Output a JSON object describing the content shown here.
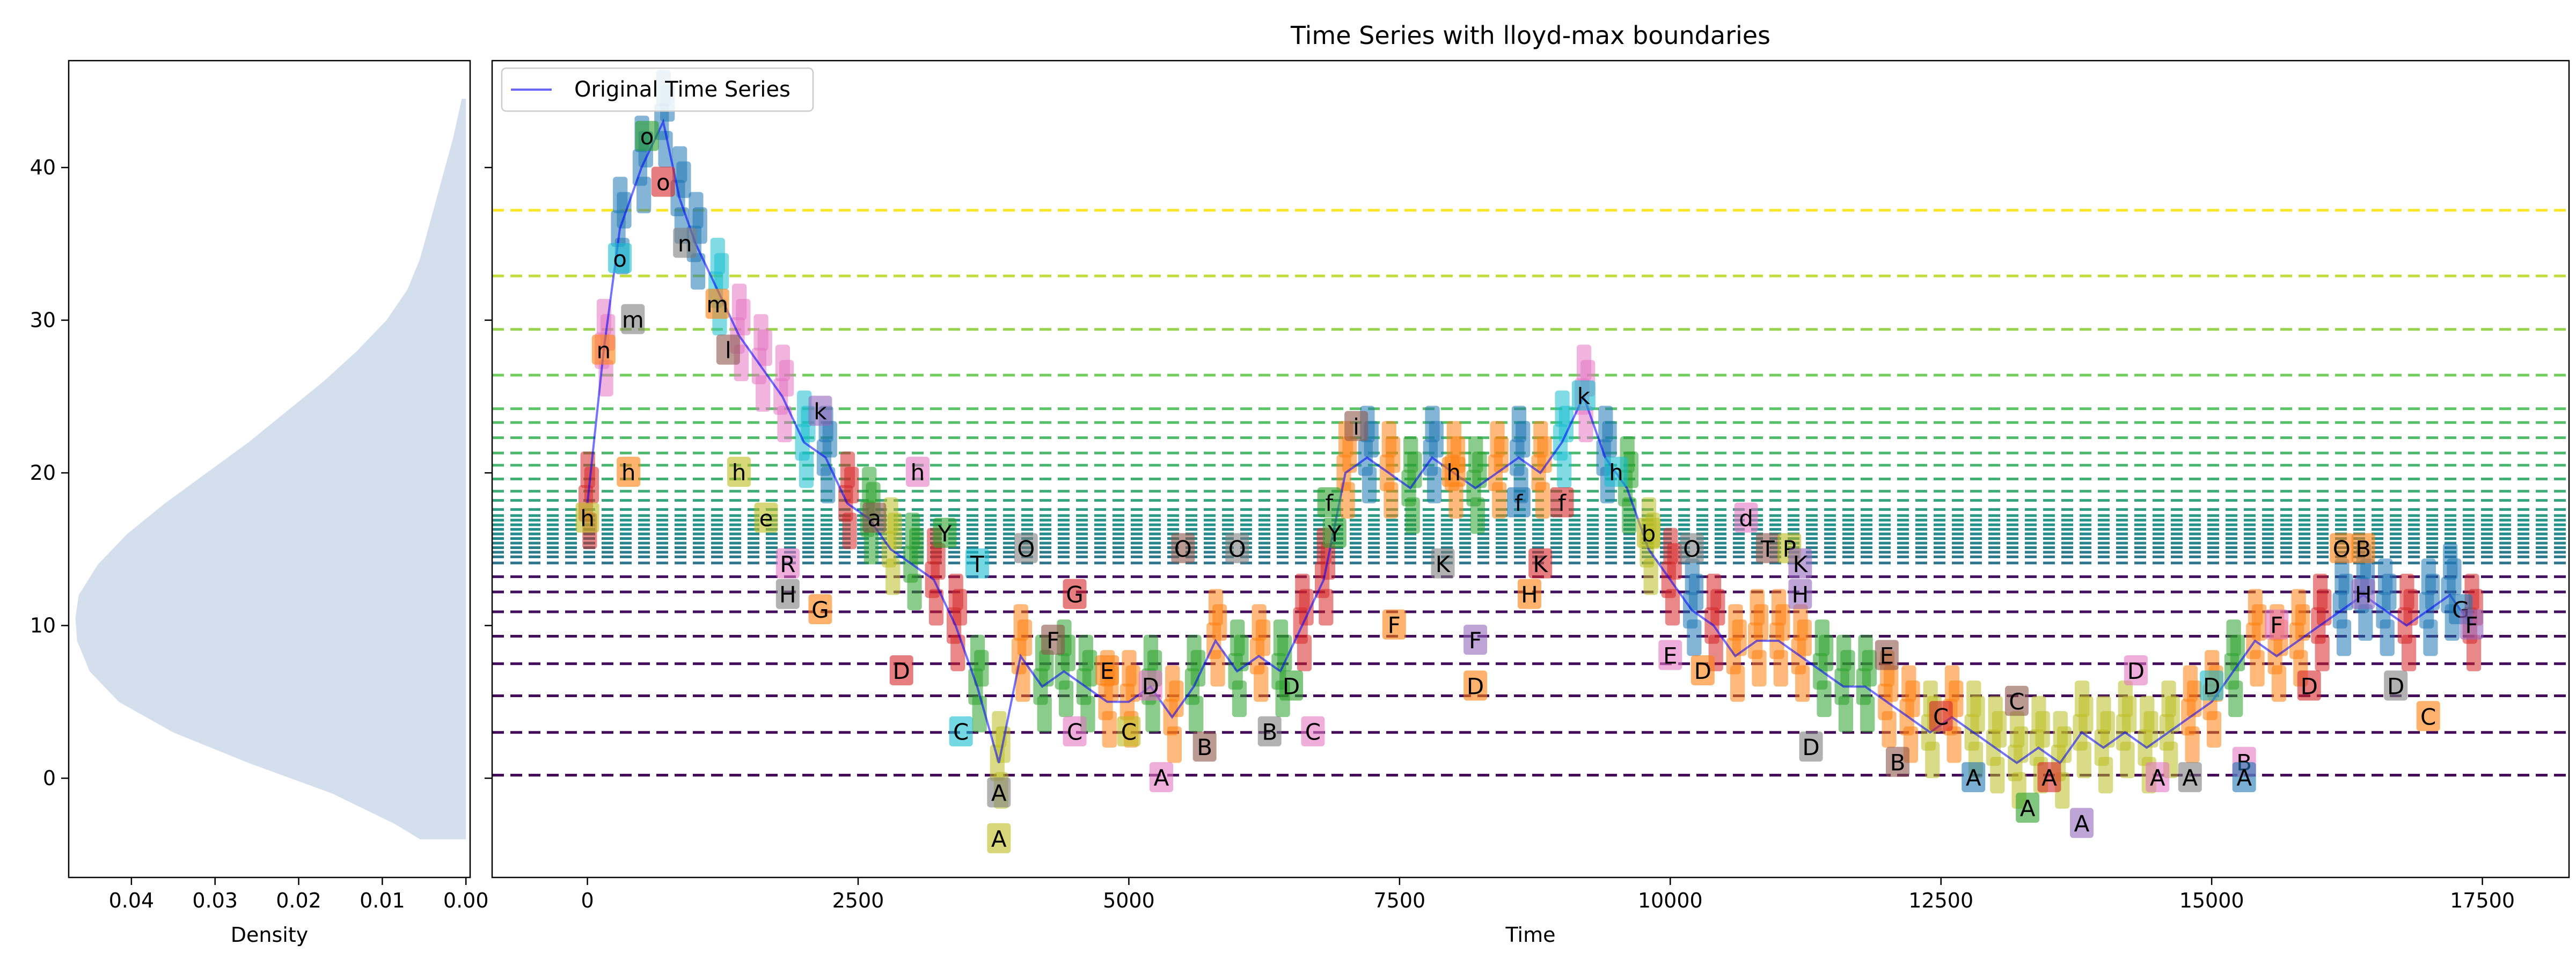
{
  "chart_data": [
    {
      "type": "area",
      "xlabel": "Density",
      "xticks": [
        "0.04",
        "0.03",
        "0.02",
        "0.01",
        "0.00"
      ],
      "xlim": [
        0.0475,
        -0.0005
      ],
      "ylim": [
        -6.5,
        47
      ],
      "yticks": [
        "0",
        "10",
        "20",
        "30",
        "40"
      ],
      "orientation": "horizontal",
      "fill_color": "#b0c4de",
      "density_curve": {
        "y": [
          -4,
          -3,
          -1,
          1,
          3,
          5,
          7,
          9,
          10.5,
          12,
          14,
          16,
          18,
          20,
          22,
          24,
          26,
          28,
          30,
          32,
          34,
          36,
          38,
          40,
          42,
          44.5
        ],
        "density": [
          0.0055,
          0.0085,
          0.016,
          0.026,
          0.035,
          0.0415,
          0.045,
          0.0465,
          0.0467,
          0.0463,
          0.044,
          0.0405,
          0.036,
          0.031,
          0.026,
          0.0215,
          0.017,
          0.013,
          0.0095,
          0.007,
          0.0055,
          0.0045,
          0.0035,
          0.0025,
          0.0015,
          0.0005
        ]
      }
    },
    {
      "type": "line",
      "title": "Time Series with lloyd-max boundaries",
      "xlabel": "Time",
      "xlim": [
        -880,
        18300
      ],
      "ylim": [
        -6.5,
        47
      ],
      "xticks": [
        "0",
        "2500",
        "5000",
        "7500",
        "10000",
        "12500",
        "15000",
        "17500"
      ],
      "legend": {
        "entries": [
          "Original Time Series"
        ],
        "placement": "top-left"
      },
      "series": [
        {
          "name": "Original Time Series",
          "color": "#0000ff",
          "x": [
            0,
            150,
            300,
            500,
            700,
            850,
            1000,
            1200,
            1400,
            1600,
            1800,
            2000,
            2200,
            2400,
            2600,
            2800,
            3000,
            3200,
            3400,
            3600,
            3800,
            4000,
            4200,
            4400,
            4600,
            4800,
            5000,
            5200,
            5400,
            5600,
            5800,
            6000,
            6200,
            6400,
            6600,
            6800,
            7000,
            7200,
            7400,
            7600,
            7800,
            8000,
            8200,
            8400,
            8600,
            8800,
            9000,
            9200,
            9400,
            9600,
            9800,
            10000,
            10200,
            10400,
            10600,
            10800,
            11000,
            11200,
            11400,
            11600,
            11800,
            12000,
            12200,
            12400,
            12600,
            12800,
            13000,
            13200,
            13400,
            13600,
            13800,
            14000,
            14200,
            14400,
            14600,
            14800,
            15000,
            15200,
            15400,
            15600,
            15800,
            16000,
            16200,
            16400,
            16600,
            16800,
            17000,
            17200,
            17400
          ],
          "y": [
            18,
            28,
            36,
            40,
            43,
            38,
            35,
            32,
            29,
            27,
            25,
            22,
            21,
            18,
            17,
            15,
            14,
            13,
            10,
            6,
            1,
            8,
            6,
            7,
            6,
            5,
            5,
            6,
            4,
            6,
            9,
            7,
            8,
            7,
            10,
            13,
            20,
            21,
            20,
            19,
            21,
            20,
            19,
            20,
            21,
            20,
            22,
            25,
            21,
            19,
            15,
            13,
            11,
            10,
            8,
            9,
            9,
            8,
            7,
            6,
            6,
            5,
            4,
            3,
            4,
            3,
            2,
            1,
            2,
            1,
            3,
            2,
            3,
            2,
            3,
            4,
            5,
            7,
            9,
            8,
            9,
            10,
            11,
            12,
            11,
            10,
            11,
            12,
            10
          ]
        }
      ],
      "boundaries": {
        "style": "dashed",
        "values": [
          0.2,
          3.0,
          5.4,
          7.5,
          9.3,
          10.9,
          12.2,
          13.2,
          14.1,
          14.5,
          14.8,
          15.1,
          15.4,
          15.7,
          16.0,
          16.3,
          16.6,
          16.9,
          17.2,
          17.6,
          18.2,
          18.8,
          19.6,
          20.5,
          21.3,
          22.3,
          23.3,
          24.2,
          26.4,
          29.4,
          32.9,
          37.2
        ]
      },
      "symbol_palette": [
        "#1f77b4",
        "#ff7f0e",
        "#2ca02c",
        "#d62728",
        "#9467bd",
        "#8c564b",
        "#e377c2",
        "#7f7f7f",
        "#bcbd22",
        "#17becf"
      ],
      "symbol_labels": [
        {
          "x": 0,
          "y": 17,
          "label": "h"
        },
        {
          "x": 150,
          "y": 28,
          "label": "n"
        },
        {
          "x": 300,
          "y": 34,
          "label": "o"
        },
        {
          "x": 380,
          "y": 20,
          "label": "h"
        },
        {
          "x": 420,
          "y": 30,
          "label": "m"
        },
        {
          "x": 550,
          "y": 42,
          "label": "o"
        },
        {
          "x": 700,
          "y": 39,
          "label": "o"
        },
        {
          "x": 900,
          "y": 35,
          "label": "n"
        },
        {
          "x": 1200,
          "y": 31,
          "label": "m"
        },
        {
          "x": 1300,
          "y": 28,
          "label": "l"
        },
        {
          "x": 1400,
          "y": 20,
          "label": "h"
        },
        {
          "x": 1650,
          "y": 17,
          "label": "e"
        },
        {
          "x": 1850,
          "y": 14,
          "label": "R"
        },
        {
          "x": 1850,
          "y": 12,
          "label": "H"
        },
        {
          "x": 2150,
          "y": 11,
          "label": "G"
        },
        {
          "x": 2150,
          "y": 24,
          "label": "k"
        },
        {
          "x": 2650,
          "y": 17,
          "label": "a"
        },
        {
          "x": 2900,
          "y": 7,
          "label": "D"
        },
        {
          "x": 3050,
          "y": 20,
          "label": "h"
        },
        {
          "x": 3300,
          "y": 16,
          "label": "Y"
        },
        {
          "x": 3450,
          "y": 3,
          "label": "C"
        },
        {
          "x": 3600,
          "y": 14,
          "label": "T"
        },
        {
          "x": 3800,
          "y": -1,
          "label": "A"
        },
        {
          "x": 3800,
          "y": -4,
          "label": "A"
        },
        {
          "x": 4050,
          "y": 15,
          "label": "O"
        },
        {
          "x": 4300,
          "y": 9,
          "label": "F"
        },
        {
          "x": 4500,
          "y": 12,
          "label": "G"
        },
        {
          "x": 4500,
          "y": 3,
          "label": "C"
        },
        {
          "x": 4800,
          "y": 7,
          "label": "E"
        },
        {
          "x": 5000,
          "y": 3,
          "label": "C"
        },
        {
          "x": 5200,
          "y": 6,
          "label": "D"
        },
        {
          "x": 5300,
          "y": 0,
          "label": "A"
        },
        {
          "x": 5500,
          "y": 15,
          "label": "O"
        },
        {
          "x": 5700,
          "y": 2,
          "label": "B"
        },
        {
          "x": 6000,
          "y": 15,
          "label": "O"
        },
        {
          "x": 6300,
          "y": 3,
          "label": "B"
        },
        {
          "x": 6500,
          "y": 6,
          "label": "D"
        },
        {
          "x": 6700,
          "y": 3,
          "label": "C"
        },
        {
          "x": 6850,
          "y": 18,
          "label": "f"
        },
        {
          "x": 6900,
          "y": 16,
          "label": "Y"
        },
        {
          "x": 7100,
          "y": 23,
          "label": "i"
        },
        {
          "x": 7450,
          "y": 10,
          "label": "F"
        },
        {
          "x": 7900,
          "y": 14,
          "label": "K"
        },
        {
          "x": 8000,
          "y": 20,
          "label": "h"
        },
        {
          "x": 8200,
          "y": 9,
          "label": "F"
        },
        {
          "x": 8200,
          "y": 6,
          "label": "D"
        },
        {
          "x": 8600,
          "y": 18,
          "label": "f"
        },
        {
          "x": 8700,
          "y": 12,
          "label": "H"
        },
        {
          "x": 8800,
          "y": 14,
          "label": "K"
        },
        {
          "x": 9000,
          "y": 18,
          "label": "f"
        },
        {
          "x": 9200,
          "y": 25,
          "label": "k"
        },
        {
          "x": 9500,
          "y": 20,
          "label": "h"
        },
        {
          "x": 9800,
          "y": 16,
          "label": "b"
        },
        {
          "x": 10000,
          "y": 8,
          "label": "E"
        },
        {
          "x": 10200,
          "y": 15,
          "label": "O"
        },
        {
          "x": 10300,
          "y": 7,
          "label": "D"
        },
        {
          "x": 10700,
          "y": 17,
          "label": "d"
        },
        {
          "x": 10900,
          "y": 15,
          "label": "T"
        },
        {
          "x": 11100,
          "y": 15,
          "label": "P"
        },
        {
          "x": 11200,
          "y": 14,
          "label": "K"
        },
        {
          "x": 11200,
          "y": 12,
          "label": "H"
        },
        {
          "x": 11300,
          "y": 2,
          "label": "D"
        },
        {
          "x": 12000,
          "y": 8,
          "label": "E"
        },
        {
          "x": 12100,
          "y": 1,
          "label": "B"
        },
        {
          "x": 12500,
          "y": 4,
          "label": "C"
        },
        {
          "x": 12800,
          "y": 0,
          "label": "A"
        },
        {
          "x": 13200,
          "y": 5,
          "label": "C"
        },
        {
          "x": 13300,
          "y": -2,
          "label": "A"
        },
        {
          "x": 13500,
          "y": 0,
          "label": "A"
        },
        {
          "x": 13800,
          "y": -3,
          "label": "A"
        },
        {
          "x": 14300,
          "y": 7,
          "label": "D"
        },
        {
          "x": 14500,
          "y": 0,
          "label": "A"
        },
        {
          "x": 14800,
          "y": 0,
          "label": "A"
        },
        {
          "x": 15000,
          "y": 6,
          "label": "D"
        },
        {
          "x": 15300,
          "y": 1,
          "label": "B"
        },
        {
          "x": 15300,
          "y": 0,
          "label": "A"
        },
        {
          "x": 15600,
          "y": 10,
          "label": "F"
        },
        {
          "x": 15900,
          "y": 6,
          "label": "D"
        },
        {
          "x": 16200,
          "y": 15,
          "label": "O"
        },
        {
          "x": 16400,
          "y": 15,
          "label": "B"
        },
        {
          "x": 16400,
          "y": 12,
          "label": "H"
        },
        {
          "x": 16700,
          "y": 6,
          "label": "D"
        },
        {
          "x": 17000,
          "y": 4,
          "label": "C"
        },
        {
          "x": 17300,
          "y": 11,
          "label": "G"
        },
        {
          "x": 17400,
          "y": 10,
          "label": "F"
        }
      ]
    }
  ]
}
